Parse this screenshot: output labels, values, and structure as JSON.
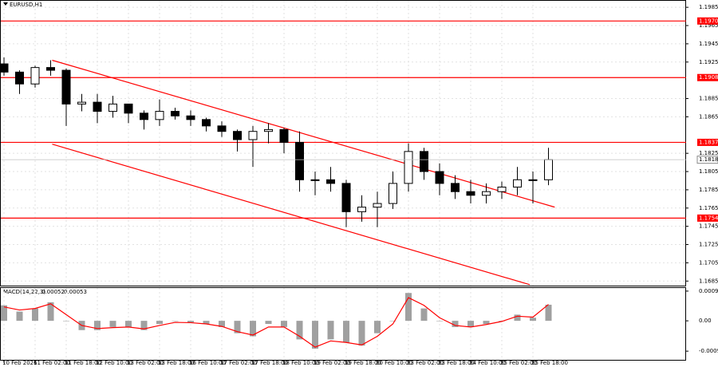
{
  "chart_data": [
    {
      "type": "candlestick",
      "title": "EURUSD,H1",
      "color": "#000000",
      "categories": [
        "10 Feb 2026",
        null,
        "11 Feb 02:00",
        null,
        "11 Feb 18:00",
        null,
        "12 Feb 10:00",
        null,
        "13 Feb 02:00",
        null,
        "13 Feb 18:00",
        null,
        "16 Feb 10:00",
        null,
        "17 Feb 02:00",
        null,
        "17 Feb 18:00",
        null,
        "18 Feb 10:00",
        null,
        "19 Feb 02:00",
        null,
        "19 Feb 18:00",
        null,
        "20 Feb 10:00",
        null,
        "23 Feb 02:00",
        null,
        "23 Feb 18:00",
        null,
        "24 Feb 10:00",
        null,
        "25 Feb 02:00",
        null,
        "25 Feb 18:00",
        null
      ],
      "open": [
        1.1923,
        1.1914,
        1.1901,
        1.1919,
        1.1916,
        1.1879,
        1.1881,
        1.1871,
        1.1879,
        1.1869,
        1.1862,
        1.1871,
        1.1866,
        1.1862,
        1.1855,
        1.1849,
        1.184,
        1.1849,
        1.1851,
        1.1837,
        1.1796,
        1.1796,
        1.1792,
        1.1761,
        1.1766,
        1.177,
        1.1792,
        1.1827,
        1.1805,
        1.1792,
        1.1783,
        1.1779,
        1.1783,
        1.1788,
        1.1796,
        1.1796
      ],
      "high": [
        1.193,
        1.1916,
        1.1921,
        1.1927,
        1.1918,
        1.189,
        1.189,
        1.1888,
        1.1879,
        1.1872,
        1.1884,
        1.1875,
        1.1872,
        1.1864,
        1.186,
        1.1851,
        1.1855,
        1.1858,
        1.1853,
        1.1849,
        1.1805,
        1.181,
        1.1796,
        1.1779,
        1.1783,
        1.1805,
        1.1836,
        1.1831,
        1.1814,
        1.1801,
        1.1796,
        1.1792,
        1.1794,
        1.181,
        1.1805,
        1.1831
      ],
      "low": [
        1.191,
        1.189,
        1.1897,
        1.191,
        1.1855,
        1.1871,
        1.1858,
        1.1864,
        1.1858,
        1.1851,
        1.1855,
        1.1862,
        1.1855,
        1.1849,
        1.1843,
        1.1827,
        1.181,
        1.1836,
        1.1825,
        1.1783,
        1.1779,
        1.1783,
        1.1744,
        1.175,
        1.1744,
        1.1764,
        1.1783,
        1.1796,
        1.1779,
        1.1775,
        1.177,
        1.177,
        1.1775,
        1.1779,
        1.177,
        1.179
      ],
      "close": [
        1.1914,
        1.1901,
        1.1919,
        1.1916,
        1.1879,
        1.1881,
        1.1871,
        1.1879,
        1.1869,
        1.1862,
        1.1871,
        1.1866,
        1.1862,
        1.1855,
        1.1849,
        1.184,
        1.1849,
        1.1851,
        1.1837,
        1.1796,
        1.1796,
        1.1792,
        1.1761,
        1.1766,
        1.177,
        1.1792,
        1.1827,
        1.1805,
        1.1792,
        1.1783,
        1.1779,
        1.1783,
        1.1788,
        1.1796,
        1.1796,
        1.1818
      ],
      "ylim": [
        1.168,
        1.1993
      ],
      "yticks": [
        1.1985,
        1.1965,
        1.1945,
        1.1925,
        1.1885,
        1.1865,
        1.1825,
        1.1805,
        1.1785,
        1.1765,
        1.1745,
        1.1725,
        1.1705,
        1.1685
      ],
      "grid": true,
      "hlines": [
        {
          "value": 1.197,
          "label": "1.1970"
        },
        {
          "value": 1.1908,
          "label": "1.1908"
        },
        {
          "value": 1.1837,
          "label": "1.1837"
        },
        {
          "value": 1.1754,
          "label": "1.1754"
        }
      ],
      "hline_color": "#ff0000",
      "channel": [
        {
          "x": [
            3.1,
            35.4
          ],
          "y": [
            1.1927,
            1.1766
          ]
        },
        {
          "x": [
            3.1,
            33.8
          ],
          "y": [
            1.1835,
            1.1681
          ]
        }
      ],
      "channel_color": "#ff0000"
    },
    {
      "type": "macd",
      "title": "MACD(14,22,3)",
      "series": [
        {
          "name": "histogram",
          "color": "#a0a0a0",
          "values": [
            0.0005,
            0.0003,
            0.0004,
            0.0006,
            0,
            -0.0003,
            -0.0003,
            -0.0002,
            -0.0002,
            -0.0003,
            -0.0001,
            0,
            -5e-05,
            -0.0001,
            -0.0002,
            -0.0004,
            -0.0005,
            -0.0001,
            -0.0002,
            -0.0006,
            -0.0009,
            -0.0006,
            -0.0007,
            -0.0008,
            -0.0004,
            0,
            0.0009,
            0.0004,
            0,
            -0.0002,
            -0.0002,
            -0.0001,
            0,
            0.0002,
            0.0001,
            0.00052
          ]
        },
        {
          "name": "signal",
          "color": "#ff0000",
          "values": [
            0.00045,
            0.00035,
            0.0004,
            0.00055,
            0.0002,
            -0.00015,
            -0.00025,
            -0.00022,
            -0.0002,
            -0.00026,
            -0.00015,
            -5e-05,
            -6e-05,
            -0.0001,
            -0.00018,
            -0.00035,
            -0.00046,
            -0.0002,
            -0.0002,
            -0.0005,
            -0.00085,
            -0.00065,
            -0.0007,
            -0.00078,
            -0.0005,
            -0.0001,
            0.00075,
            0.0005,
            0.0001,
            -0.00015,
            -0.0002,
            -0.00012,
            -2e-05,
            0.00015,
            0.00012,
            0.00053
          ]
        }
      ],
      "ylim": [
        -0.00126,
        0.00106
      ],
      "yticks": [
        0.00096,
        {
          "value": 0,
          "label": "0.00"
        },
        -0.00098
      ]
    }
  ]
}
